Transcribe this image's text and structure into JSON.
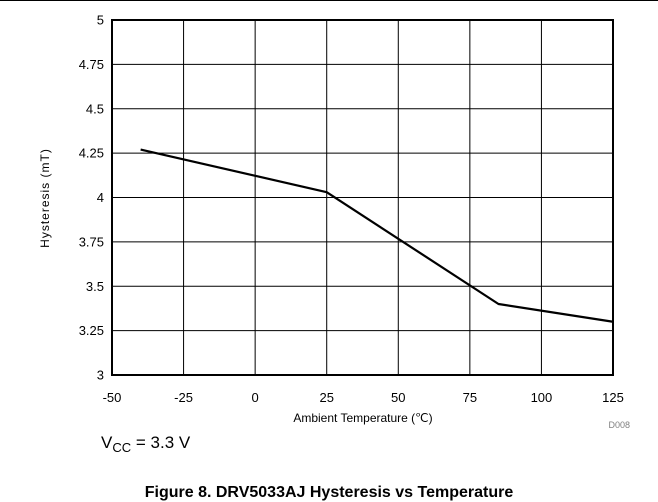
{
  "chart_data": {
    "type": "line",
    "xlabel": "Ambient Temperature (℃)",
    "ylabel": "Hysteresis (mT)",
    "xlim": [
      -50,
      125
    ],
    "ylim": [
      3,
      5
    ],
    "xticks": [
      -50,
      -25,
      0,
      25,
      50,
      75,
      100,
      125
    ],
    "yticks": [
      3,
      3.25,
      3.5,
      3.75,
      4,
      4.25,
      4.5,
      4.75,
      5
    ],
    "xtick_labels": [
      "-50",
      "-25",
      "0",
      "25",
      "50",
      "75",
      "100",
      "125"
    ],
    "ytick_labels": [
      "3",
      "3.25",
      "3.5",
      "3.75",
      "4",
      "4.25",
      "4.5",
      "4.75",
      "5"
    ],
    "grid": true,
    "line_color": "#000000",
    "series": [
      {
        "x": [
          -40,
          25,
          85,
          125
        ],
        "y": [
          4.27,
          4.03,
          3.4,
          3.3
        ]
      }
    ],
    "figure_code": "D008"
  },
  "condition": {
    "symbol": "V",
    "subscript": "CC",
    "value": "= 3.3 V"
  },
  "caption": "Figure 8. DRV5033AJ Hysteresis vs Temperature"
}
